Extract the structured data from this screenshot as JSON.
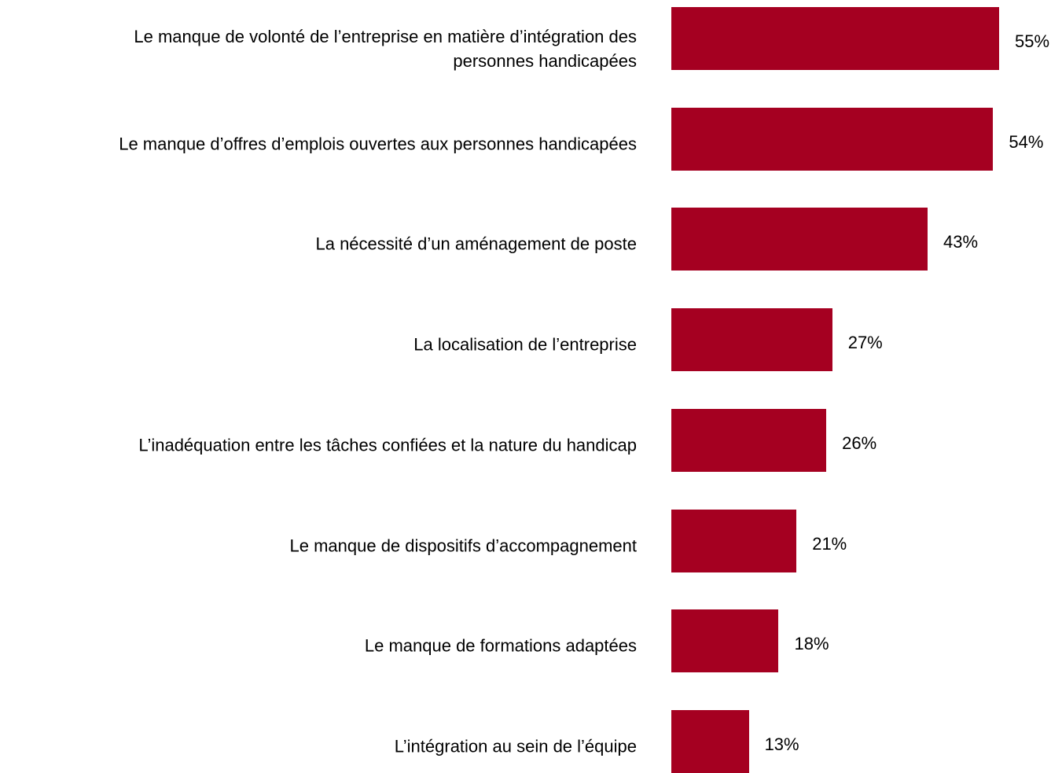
{
  "chart_data": {
    "type": "bar",
    "orientation": "horizontal",
    "color": "#a50021",
    "categories": [
      "Le manque de volonté de l’entreprise en matière d’intégration des\npersonnes handicapées",
      "Le manque d’offres d’emplois ouvertes aux personnes handicapées",
      "La nécessité d’un aménagement de poste",
      "La localisation de l’entreprise",
      "L’inadéquation entre les tâches confiées et la nature du handicap",
      "Le manque de dispositifs d’accompagnement",
      "Le manque de formations adaptées",
      "L’intégration au sein de l’équipe"
    ],
    "values": [
      55,
      54,
      43,
      27,
      26,
      21,
      18,
      13
    ],
    "value_labels": [
      "55%",
      "54%",
      "43%",
      "27%",
      "26%",
      "21%",
      "18%",
      "13%"
    ]
  }
}
